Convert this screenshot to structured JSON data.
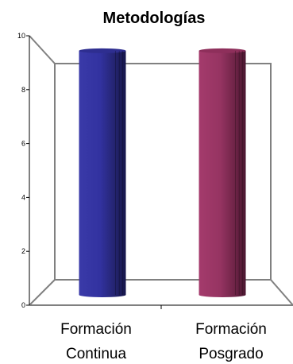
{
  "chart_data": {
    "type": "bar",
    "title": "Metodologías",
    "xlabel": "",
    "ylabel": "",
    "ylim": [
      0,
      10
    ],
    "y_ticks": [
      "0",
      "2",
      "4",
      "6",
      "8",
      "10"
    ],
    "categories": [
      {
        "line1": "Formación",
        "line2": "Continua"
      },
      {
        "line1": "Formación",
        "line2": "Posgrado"
      }
    ],
    "values": [
      8.5,
      8.5
    ],
    "colors": [
      "#2e2e90",
      "#8e2f5b"
    ],
    "grid": false,
    "legend": "none",
    "style": "3d-cylinder"
  }
}
